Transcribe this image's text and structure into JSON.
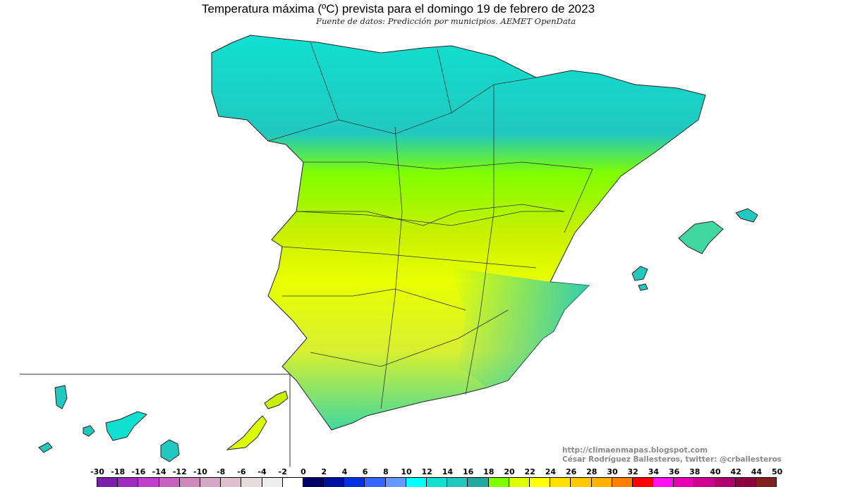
{
  "header": {
    "title": "Temperatura máxima (ºC) prevista para el domingo 19 de febrero de 2023",
    "subtitle": "Fuente de datos: Predicción por municipios. AEMET OpenData"
  },
  "credits": {
    "url": "http://climaenmapas.blogspot.com",
    "author": "César Rodríguez Ballesteros, twitter: @crballesteros"
  },
  "legend": {
    "labels": [
      "-30",
      "-18",
      "-16",
      "-14",
      "-12",
      "-10",
      "-8",
      "-6",
      "-4",
      "-2",
      "0",
      "2",
      "4",
      "6",
      "8",
      "10",
      "12",
      "14",
      "16",
      "18",
      "20",
      "22",
      "24",
      "26",
      "28",
      "30",
      "32",
      "34",
      "36",
      "38",
      "40",
      "42",
      "44",
      "50"
    ],
    "colors": [
      "#7a1fa8",
      "#a02cbf",
      "#c040cc",
      "#c860c0",
      "#cc88bb",
      "#d4a8c4",
      "#dcc0cc",
      "#e4dcdc",
      "#eeeeee",
      "#ffffff",
      "#000066",
      "#0010a0",
      "#0030e0",
      "#3366ff",
      "#6699ff",
      "#00ffff",
      "#10e0d0",
      "#20c8c0",
      "#20a8a0",
      "#80ff00",
      "#ddff00",
      "#ffff00",
      "#ffe000",
      "#ffc800",
      "#ffb000",
      "#ff8000",
      "#ff0000",
      "#ff10ee",
      "#e800b0",
      "#d00090",
      "#b00070",
      "#900040",
      "#802020"
    ]
  },
  "map": {
    "region_north_color": "#20c8c0",
    "region_center_color": "#80ff00",
    "region_south_color": "#ddff00"
  }
}
